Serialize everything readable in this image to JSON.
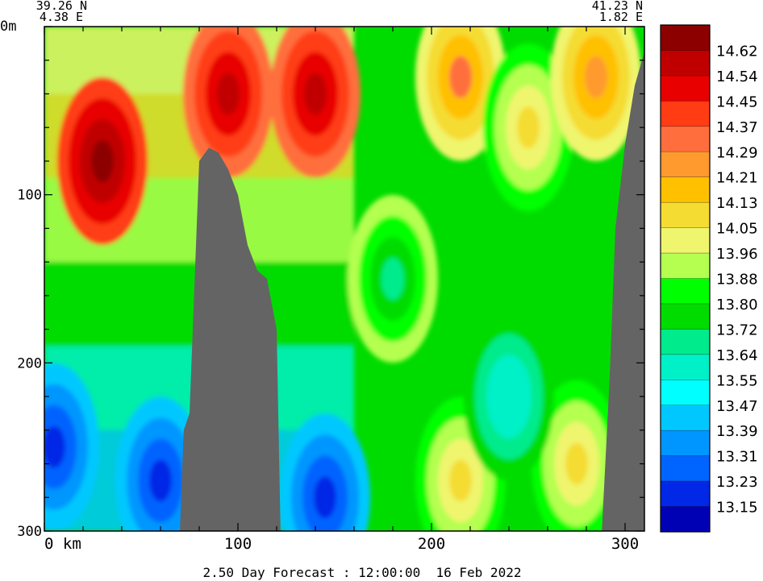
{
  "chart_data": {
    "type": "heatmap",
    "title": "",
    "footer": "2.50 Day Forecast : 12:00:00  16 Feb 2022",
    "start_label": {
      "lat": "39.26 N",
      "lon": "4.38 E"
    },
    "end_label": {
      "lat": "41.23 N",
      "lon": "1.82 E"
    },
    "x_unit_label": "0 km",
    "y_top_label": "0m",
    "xlim": [
      0,
      310
    ],
    "ylim": [
      0,
      300
    ],
    "x_ticks": [
      0,
      100,
      200,
      300
    ],
    "y_ticks": [
      0,
      100,
      200,
      300
    ],
    "colorbar": {
      "levels": [
        "14.62",
        "14.54",
        "14.45",
        "14.37",
        "14.29",
        "14.21",
        "14.13",
        "14.05",
        "13.96",
        "13.88",
        "13.80",
        "13.72",
        "13.64",
        "13.55",
        "13.47",
        "13.39",
        "13.31",
        "13.23",
        "13.15"
      ],
      "colors": [
        "#8c0000",
        "#c00000",
        "#e80000",
        "#ff3c14",
        "#ff6e3c",
        "#ff9a2e",
        "#ffc000",
        "#f5dc32",
        "#f0f56e",
        "#b4ff50",
        "#00ff00",
        "#00dc00",
        "#00eb8c",
        "#00f0c8",
        "#00ffff",
        "#00c8ff",
        "#0096ff",
        "#0064ff",
        "#0028e6",
        "#0000b4"
      ]
    },
    "land_color": "#646464",
    "bathymetry": {
      "x_km": [
        0,
        70,
        72,
        75,
        80,
        85,
        90,
        95,
        100,
        105,
        110,
        115,
        120,
        122,
        125,
        127,
        155,
        195,
        250,
        285,
        288,
        292,
        295,
        300,
        305,
        310
      ],
      "depth_m": [
        300,
        300,
        240,
        230,
        80,
        72,
        75,
        85,
        100,
        130,
        145,
        150,
        180,
        300,
        300,
        300,
        300,
        300,
        300,
        300,
        300,
        210,
        120,
        70,
        35,
        15
      ]
    },
    "features": [
      {
        "x_km": 30,
        "y_m": 80,
        "value": 14.62
      },
      {
        "x_km": 95,
        "y_m": 40,
        "value": 14.54
      },
      {
        "x_km": 140,
        "y_m": 40,
        "value": 14.54
      },
      {
        "x_km": 215,
        "y_m": 30,
        "value": 14.29
      },
      {
        "x_km": 250,
        "y_m": 60,
        "value": 14.05
      },
      {
        "x_km": 285,
        "y_m": 30,
        "value": 14.21
      },
      {
        "x_km": 5,
        "y_m": 250,
        "value": 13.15
      },
      {
        "x_km": 60,
        "y_m": 270,
        "value": 13.15
      },
      {
        "x_km": 145,
        "y_m": 280,
        "value": 13.15
      },
      {
        "x_km": 215,
        "y_m": 270,
        "value": 14.05
      },
      {
        "x_km": 275,
        "y_m": 260,
        "value": 14.05
      },
      {
        "x_km": 180,
        "y_m": 150,
        "value": 13.64
      },
      {
        "x_km": 240,
        "y_m": 220,
        "value": 13.55
      }
    ]
  }
}
